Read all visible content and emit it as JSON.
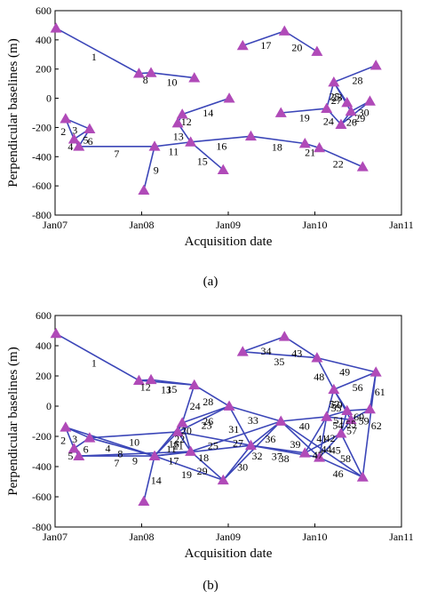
{
  "chart_data": [
    {
      "type": "line",
      "caption": "(a)",
      "xlabel": "Acquisition date",
      "ylabel": "Perpendicular baselines (m)",
      "ylim": [
        -800,
        600
      ],
      "yticks": [
        -800,
        -600,
        -400,
        -200,
        0,
        200,
        400,
        600
      ],
      "xlim": [
        "Jan07",
        "Jan11"
      ],
      "xticks": [
        "Jan07",
        "Jan08",
        "Jan09",
        "Jan10",
        "Jan11"
      ],
      "grid": false,
      "colors": {
        "line": "#3b46b8",
        "marker": "#b04ab8"
      },
      "acquisitions": [
        {
          "id": "A1",
          "date": "2007-01-05",
          "baseline": 480
        },
        {
          "id": "A2",
          "date": "2007-02-15",
          "baseline": -140
        },
        {
          "id": "A3",
          "date": "2007-03-20",
          "baseline": -280
        },
        {
          "id": "A4",
          "date": "2007-04-10",
          "baseline": -330
        },
        {
          "id": "A5",
          "date": "2007-05-25",
          "baseline": -210
        },
        {
          "id": "A6",
          "date": "2007-12-20",
          "baseline": 170
        },
        {
          "id": "A7",
          "date": "2008-01-10",
          "baseline": -630
        },
        {
          "id": "A8",
          "date": "2008-02-10",
          "baseline": 175
        },
        {
          "id": "A9",
          "date": "2008-02-25",
          "baseline": -330
        },
        {
          "id": "A10",
          "date": "2008-06-01",
          "baseline": -170
        },
        {
          "id": "A11",
          "date": "2008-06-20",
          "baseline": -110
        },
        {
          "id": "A12",
          "date": "2008-07-25",
          "baseline": -300
        },
        {
          "id": "A13",
          "date": "2008-08-10",
          "baseline": 140
        },
        {
          "id": "A14",
          "date": "2008-12-10",
          "baseline": -490
        },
        {
          "id": "A15",
          "date": "2009-01-05",
          "baseline": 0
        },
        {
          "id": "A16",
          "date": "2009-03-01",
          "baseline": 360
        },
        {
          "id": "A17",
          "date": "2009-04-05",
          "baseline": -260
        },
        {
          "id": "A18",
          "date": "2009-08-10",
          "baseline": -100
        },
        {
          "id": "A19",
          "date": "2009-08-25",
          "baseline": 460
        },
        {
          "id": "A20",
          "date": "2009-11-20",
          "baseline": -310
        },
        {
          "id": "A21",
          "date": "2010-01-10",
          "baseline": 320
        },
        {
          "id": "A22",
          "date": "2010-01-20",
          "baseline": -340
        },
        {
          "id": "A23",
          "date": "2010-02-20",
          "baseline": -70
        },
        {
          "id": "A24",
          "date": "2010-03-20",
          "baseline": 110
        },
        {
          "id": "A25",
          "date": "2010-04-20",
          "baseline": -180
        },
        {
          "id": "A26",
          "date": "2010-05-15",
          "baseline": -30
        },
        {
          "id": "A27",
          "date": "2010-06-01",
          "baseline": -90
        },
        {
          "id": "A28",
          "date": "2010-07-20",
          "baseline": -470
        },
        {
          "id": "A29",
          "date": "2010-08-20",
          "baseline": -20
        },
        {
          "id": "A30",
          "date": "2010-09-15",
          "baseline": 225
        }
      ],
      "connections": [
        {
          "label": "1",
          "from": "A1",
          "to": "A6"
        },
        {
          "label": "2",
          "from": "A2",
          "to": "A3"
        },
        {
          "label": "3",
          "from": "A2",
          "to": "A5"
        },
        {
          "label": "4",
          "from": "A3",
          "to": "A4"
        },
        {
          "label": "5",
          "from": "A3",
          "to": "A5"
        },
        {
          "label": "6",
          "from": "A4",
          "to": "A5"
        },
        {
          "label": "7",
          "from": "A4",
          "to": "A9"
        },
        {
          "label": "8",
          "from": "A6",
          "to": "A8"
        },
        {
          "label": "9",
          "from": "A7",
          "to": "A9"
        },
        {
          "label": "10",
          "from": "A8",
          "to": "A13"
        },
        {
          "label": "11",
          "from": "A9",
          "to": "A12"
        },
        {
          "label": "12",
          "from": "A10",
          "to": "A11"
        },
        {
          "label": "13",
          "from": "A10",
          "to": "A12"
        },
        {
          "label": "14",
          "from": "A11",
          "to": "A15"
        },
        {
          "label": "15",
          "from": "A12",
          "to": "A14"
        },
        {
          "label": "16",
          "from": "A12",
          "to": "A17"
        },
        {
          "label": "17",
          "from": "A16",
          "to": "A19"
        },
        {
          "label": "18",
          "from": "A17",
          "to": "A20"
        },
        {
          "label": "19",
          "from": "A18",
          "to": "A23"
        },
        {
          "label": "20",
          "from": "A19",
          "to": "A21"
        },
        {
          "label": "21",
          "from": "A20",
          "to": "A22"
        },
        {
          "label": "22",
          "from": "A22",
          "to": "A28"
        },
        {
          "label": "23",
          "from": "A23",
          "to": "A24"
        },
        {
          "label": "24",
          "from": "A23",
          "to": "A25"
        },
        {
          "label": "25",
          "from": "A24",
          "to": "A26"
        },
        {
          "label": "26",
          "from": "A25",
          "to": "A27"
        },
        {
          "label": "27",
          "from": "A24",
          "to": "A27"
        },
        {
          "label": "28",
          "from": "A24",
          "to": "A30"
        },
        {
          "label": "29",
          "from": "A25",
          "to": "A29"
        },
        {
          "label": "30",
          "from": "A27",
          "to": "A29"
        }
      ]
    },
    {
      "type": "line",
      "caption": "(b)",
      "xlabel": "Acquisition date",
      "ylabel": "Perpendicular baselines (m)",
      "ylim": [
        -800,
        600
      ],
      "yticks": [
        -800,
        -600,
        -400,
        -200,
        0,
        200,
        400,
        600
      ],
      "xlim": [
        "Jan07",
        "Jan11"
      ],
      "xticks": [
        "Jan07",
        "Jan08",
        "Jan09",
        "Jan10",
        "Jan11"
      ],
      "grid": false,
      "colors": {
        "line": "#3b46b8",
        "marker": "#b04ab8"
      },
      "acquisitions": [
        {
          "id": "A1",
          "date": "2007-01-05",
          "baseline": 480
        },
        {
          "id": "A2",
          "date": "2007-02-15",
          "baseline": -140
        },
        {
          "id": "A3",
          "date": "2007-03-20",
          "baseline": -280
        },
        {
          "id": "A4",
          "date": "2007-04-10",
          "baseline": -330
        },
        {
          "id": "A5",
          "date": "2007-05-25",
          "baseline": -210
        },
        {
          "id": "A6",
          "date": "2007-12-20",
          "baseline": 170
        },
        {
          "id": "A7",
          "date": "2008-01-10",
          "baseline": -630
        },
        {
          "id": "A8",
          "date": "2008-02-10",
          "baseline": 175
        },
        {
          "id": "A9",
          "date": "2008-02-25",
          "baseline": -330
        },
        {
          "id": "A10",
          "date": "2008-06-01",
          "baseline": -170
        },
        {
          "id": "A11",
          "date": "2008-06-20",
          "baseline": -110
        },
        {
          "id": "A12",
          "date": "2008-07-25",
          "baseline": -300
        },
        {
          "id": "A13",
          "date": "2008-08-10",
          "baseline": 140
        },
        {
          "id": "A14",
          "date": "2008-12-10",
          "baseline": -490
        },
        {
          "id": "A15",
          "date": "2009-01-05",
          "baseline": 0
        },
        {
          "id": "A16",
          "date": "2009-03-01",
          "baseline": 360
        },
        {
          "id": "A17",
          "date": "2009-04-05",
          "baseline": -260
        },
        {
          "id": "A18",
          "date": "2009-08-10",
          "baseline": -100
        },
        {
          "id": "A19",
          "date": "2009-08-25",
          "baseline": 460
        },
        {
          "id": "A20",
          "date": "2009-11-20",
          "baseline": -310
        },
        {
          "id": "A21",
          "date": "2010-01-10",
          "baseline": 320
        },
        {
          "id": "A22",
          "date": "2010-01-20",
          "baseline": -340
        },
        {
          "id": "A23",
          "date": "2010-02-20",
          "baseline": -70
        },
        {
          "id": "A24",
          "date": "2010-03-20",
          "baseline": 110
        },
        {
          "id": "A25",
          "date": "2010-04-20",
          "baseline": -180
        },
        {
          "id": "A26",
          "date": "2010-05-15",
          "baseline": -30
        },
        {
          "id": "A27",
          "date": "2010-06-01",
          "baseline": -90
        },
        {
          "id": "A28",
          "date": "2010-07-20",
          "baseline": -470
        },
        {
          "id": "A29",
          "date": "2010-08-20",
          "baseline": -20
        },
        {
          "id": "A30",
          "date": "2010-09-15",
          "baseline": 225
        }
      ],
      "connections": [
        {
          "label": "1",
          "from": "A1",
          "to": "A6"
        },
        {
          "label": "2",
          "from": "A2",
          "to": "A3"
        },
        {
          "label": "3",
          "from": "A2",
          "to": "A5"
        },
        {
          "label": "4",
          "from": "A2",
          "to": "A9"
        },
        {
          "label": "5",
          "from": "A3",
          "to": "A4"
        },
        {
          "label": "6",
          "from": "A3",
          "to": "A5"
        },
        {
          "label": "7",
          "from": "A4",
          "to": "A9"
        },
        {
          "label": "8",
          "from": "A5",
          "to": "A9"
        },
        {
          "label": "9",
          "from": "A4",
          "to": "A12"
        },
        {
          "label": "10",
          "from": "A5",
          "to": "A10"
        },
        {
          "label": "11",
          "from": "A9",
          "to": "A10"
        },
        {
          "label": "12",
          "from": "A6",
          "to": "A8"
        },
        {
          "label": "13",
          "from": "A6",
          "to": "A13"
        },
        {
          "label": "14",
          "from": "A7",
          "to": "A9"
        },
        {
          "label": "15",
          "from": "A8",
          "to": "A13"
        },
        {
          "label": "16",
          "from": "A9",
          "to": "A11"
        },
        {
          "label": "17",
          "from": "A9",
          "to": "A12"
        },
        {
          "label": "18",
          "from": "A9",
          "to": "A17"
        },
        {
          "label": "19",
          "from": "A9",
          "to": "A14"
        },
        {
          "label": "20",
          "from": "A10",
          "to": "A11"
        },
        {
          "label": "21",
          "from": "A10",
          "to": "A12"
        },
        {
          "label": "22",
          "from": "A11",
          "to": "A12"
        },
        {
          "label": "23",
          "from": "A10",
          "to": "A15"
        },
        {
          "label": "24",
          "from": "A11",
          "to": "A13"
        },
        {
          "label": "25",
          "from": "A10",
          "to": "A17"
        },
        {
          "label": "26",
          "from": "A11",
          "to": "A15"
        },
        {
          "label": "27",
          "from": "A12",
          "to": "A18"
        },
        {
          "label": "28",
          "from": "A13",
          "to": "A15"
        },
        {
          "label": "29",
          "from": "A12",
          "to": "A14"
        },
        {
          "label": "30",
          "from": "A14",
          "to": "A17"
        },
        {
          "label": "31",
          "from": "A15",
          "to": "A17"
        },
        {
          "label": "32",
          "from": "A14",
          "to": "A18"
        },
        {
          "label": "33",
          "from": "A15",
          "to": "A18"
        },
        {
          "label": "34",
          "from": "A16",
          "to": "A19"
        },
        {
          "label": "35",
          "from": "A16",
          "to": "A21"
        },
        {
          "label": "36",
          "from": "A17",
          "to": "A18"
        },
        {
          "label": "37",
          "from": "A17",
          "to": "A20"
        },
        {
          "label": "38",
          "from": "A17",
          "to": "A22"
        },
        {
          "label": "39",
          "from": "A18",
          "to": "A22"
        },
        {
          "label": "40",
          "from": "A18",
          "to": "A23"
        },
        {
          "label": "41",
          "from": "A20",
          "to": "A23"
        },
        {
          "label": "42",
          "from": "A22",
          "to": "A23"
        },
        {
          "label": "43",
          "from": "A19",
          "to": "A21"
        },
        {
          "label": "44",
          "from": "A20",
          "to": "A25"
        },
        {
          "label": "45",
          "from": "A22",
          "to": "A25"
        },
        {
          "label": "46",
          "from": "A22",
          "to": "A28"
        },
        {
          "label": "47",
          "from": "A18",
          "to": "A28"
        },
        {
          "label": "48",
          "from": "A21",
          "to": "A24"
        },
        {
          "label": "49",
          "from": "A21",
          "to": "A30"
        },
        {
          "label": "50",
          "from": "A23",
          "to": "A24"
        },
        {
          "label": "51",
          "from": "A23",
          "to": "A26"
        },
        {
          "label": "52",
          "from": "A24",
          "to": "A26"
        },
        {
          "label": "53",
          "from": "A24",
          "to": "A27"
        },
        {
          "label": "54",
          "from": "A23",
          "to": "A27"
        },
        {
          "label": "55",
          "from": "A25",
          "to": "A26"
        },
        {
          "label": "56",
          "from": "A24",
          "to": "A30"
        },
        {
          "label": "57",
          "from": "A25",
          "to": "A27"
        },
        {
          "label": "58",
          "from": "A25",
          "to": "A28"
        },
        {
          "label": "59",
          "from": "A27",
          "to": "A29"
        },
        {
          "label": "60",
          "from": "A26",
          "to": "A29"
        },
        {
          "label": "61",
          "from": "A29",
          "to": "A30"
        },
        {
          "label": "62",
          "from": "A28",
          "to": "A30"
        }
      ]
    }
  ]
}
